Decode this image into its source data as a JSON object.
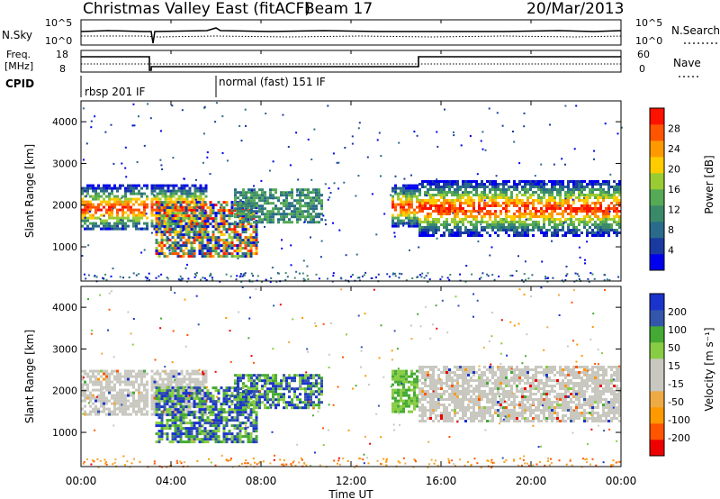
{
  "header": {
    "station": "Christmas Valley East (fitACF)",
    "beam": "Beam 17",
    "date": "20/Mar/2013"
  },
  "noise_panel": {
    "left_label": "N.Sky",
    "right_label": "N.Search",
    "left_ticks": [
      "10^5",
      "10^0"
    ],
    "right_ticks": [
      "10^5",
      "10^0"
    ]
  },
  "freq_panel": {
    "left_label_line1": "Freq.",
    "left_label_line2": "[MHz]",
    "right_label": "Nave",
    "left_ticks": [
      "18",
      "8"
    ],
    "right_ticks": [
      "60",
      "0"
    ]
  },
  "cpid": {
    "label": "CPID",
    "segments": [
      {
        "text": "rbsp 201 IF",
        "start_hour": 0.0
      },
      {
        "text": "normal (fast) 151 IF",
        "start_hour": 6.0
      }
    ]
  },
  "time_axis": {
    "label": "Time UT",
    "range_hours": [
      0,
      24
    ],
    "ticks": [
      "00:00",
      "04:00",
      "08:00",
      "12:00",
      "16:00",
      "20:00",
      "00:00"
    ]
  },
  "colors": {
    "power_scale": [
      "#0000ee",
      "#1a3aa0",
      "#2a6a8a",
      "#3a8a6a",
      "#55aa55",
      "#99cc33",
      "#ffcc00",
      "#ff9900",
      "#ff5500",
      "#ff1100"
    ],
    "velocity_scale": [
      "#ee0000",
      "#ff5500",
      "#ff9900",
      "#eeaa44",
      "#c8c8c0",
      "#c8c8c0",
      "#88cc44",
      "#44aa33",
      "#3355aa",
      "#1a33cc"
    ]
  },
  "chart_data": [
    {
      "type": "heatmap",
      "title": "Power",
      "xlabel": "Time UT",
      "ylabel": "Slant Range [km]",
      "xlim_hours": [
        0,
        24
      ],
      "ylim_km": [
        180,
        4500
      ],
      "yticks": [
        1000,
        2000,
        3000,
        4000
      ],
      "colorbar": {
        "label": "Power [dB]",
        "range": [
          0,
          32
        ],
        "ticks": [
          "4",
          "8",
          "12",
          "16",
          "20",
          "24",
          "28"
        ]
      },
      "echo_bands": [
        {
          "t_start": 0.0,
          "t_end": 2.9,
          "range_km": [
            1400,
            2500
          ],
          "level": "power 18-30 dB"
        },
        {
          "t_start": 3.1,
          "t_end": 5.6,
          "range_km": [
            1400,
            2500
          ],
          "level": "power 14-22 dB"
        },
        {
          "t_start": 3.3,
          "t_end": 7.8,
          "range_km": [
            800,
            2100
          ],
          "level": "power 8-24 dB"
        },
        {
          "t_start": 6.8,
          "t_end": 10.7,
          "range_km": [
            1600,
            2400
          ],
          "level": "power 8-14 dB"
        },
        {
          "t_start": 13.8,
          "t_end": 15.0,
          "range_km": [
            1500,
            2500
          ],
          "level": "power 10-26 dB"
        },
        {
          "t_start": 15.0,
          "t_end": 24.0,
          "range_km": [
            1300,
            2600
          ],
          "level": "power 16-30 dB"
        }
      ]
    },
    {
      "type": "heatmap",
      "title": "Velocity",
      "xlabel": "Time UT",
      "ylabel": "Slant Range [km]",
      "xlim_hours": [
        0,
        24
      ],
      "ylim_km": [
        180,
        4500
      ],
      "yticks": [
        1000,
        2000,
        3000,
        4000
      ],
      "colorbar": {
        "label": "Velocity [m s⁻¹]",
        "range": [
          -250,
          250
        ],
        "ticks": [
          "200",
          "100",
          "50",
          "15",
          "-15",
          "-50",
          "-100",
          "-200"
        ]
      },
      "echo_bands": [
        {
          "t_start": 0.0,
          "t_end": 2.9,
          "range_km": [
            1400,
            2500
          ],
          "level": "velocity -15 to 15 m/s"
        },
        {
          "t_start": 3.1,
          "t_end": 5.6,
          "range_km": [
            1400,
            2500
          ],
          "level": "velocity -15 to 15 m/s"
        },
        {
          "t_start": 3.3,
          "t_end": 7.8,
          "range_km": [
            800,
            2100
          ],
          "level": "velocity 50 to 150 m/s"
        },
        {
          "t_start": 6.8,
          "t_end": 10.7,
          "range_km": [
            1600,
            2400
          ],
          "level": "velocity 50 to 200 m/s"
        },
        {
          "t_start": 13.8,
          "t_end": 15.0,
          "range_km": [
            1500,
            2500
          ],
          "level": "velocity 15 to 50 m/s"
        },
        {
          "t_start": 15.0,
          "t_end": 24.0,
          "range_km": [
            1300,
            2600
          ],
          "level": "velocity -15 to 15 m/s"
        }
      ]
    }
  ]
}
